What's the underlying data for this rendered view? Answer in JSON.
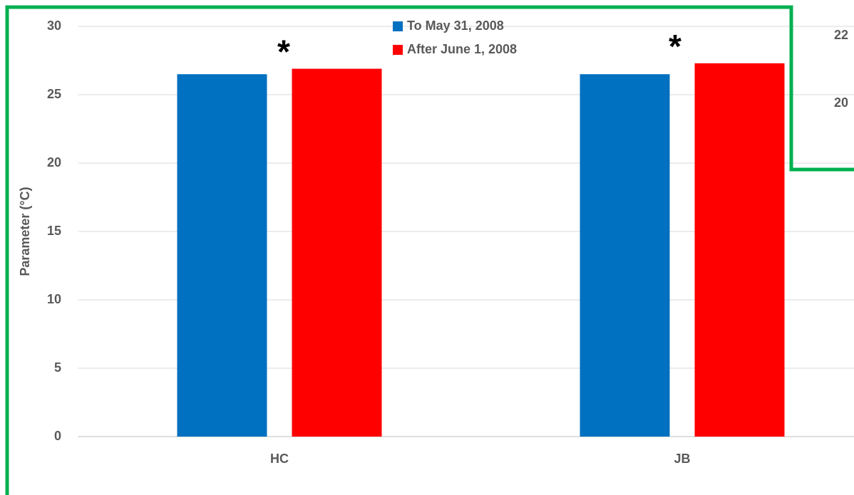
{
  "chart_data": {
    "type": "bar",
    "y_label": "Parameter (°C)",
    "categories": [
      "HC",
      "JB"
    ],
    "series": [
      {
        "name": "To May 31, 2008",
        "color": "#0070c0",
        "values": [
          26.5,
          26.5
        ]
      },
      {
        "name": "After June 1, 2008",
        "color": "#ff0000",
        "values": [
          26.9,
          27.3
        ]
      }
    ],
    "annotations": [
      "*",
      "*"
    ],
    "ylim": [
      0,
      30
    ],
    "yticks": [
      0,
      5,
      10,
      15,
      20,
      25,
      30
    ],
    "grid": true,
    "legend": "top-center",
    "inset_ticks": [
      "22",
      "20"
    ]
  }
}
